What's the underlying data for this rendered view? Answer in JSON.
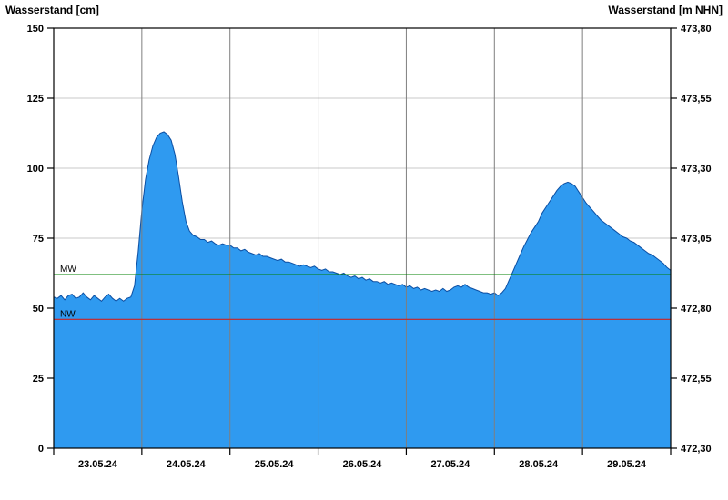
{
  "header": {
    "left_axis_title": "Wasserstand [cm]",
    "right_axis_title": "Wasserstand [m NHN]"
  },
  "chart_data": {
    "type": "area",
    "axis_title_left": "Wasserstand [cm]",
    "axis_title_right": "Wasserstand [m NHN]",
    "x_labels": [
      "23.05.24",
      "24.05.24",
      "25.05.24",
      "26.05.24",
      "27.05.24",
      "28.05.24",
      "29.05.24"
    ],
    "hours_total": 168,
    "days_total": 7,
    "ylim": [
      0,
      150
    ],
    "y_ticks_left": [
      {
        "value": 0,
        "label": "0"
      },
      {
        "value": 25,
        "label": "25"
      },
      {
        "value": 50,
        "label": "50"
      },
      {
        "value": 75,
        "label": "75"
      },
      {
        "value": 100,
        "label": "100"
      },
      {
        "value": 125,
        "label": "125"
      },
      {
        "value": 150,
        "label": "150"
      }
    ],
    "y_ticks_right": [
      {
        "value": 0,
        "label": "472,30"
      },
      {
        "value": 25,
        "label": "472,55"
      },
      {
        "value": 50,
        "label": "472,80"
      },
      {
        "value": 75,
        "label": "473,05"
      },
      {
        "value": 100,
        "label": "473,30"
      },
      {
        "value": 125,
        "label": "473,55"
      },
      {
        "value": 150,
        "label": "473,80"
      }
    ],
    "reference_lines": [
      {
        "name": "MW",
        "value": 62,
        "color": "#008000"
      },
      {
        "name": "NW",
        "value": 46,
        "color": "#cc2222"
      }
    ],
    "colors": {
      "area_fill": "#2f9af0",
      "area_stroke": "#0b4ea2",
      "grid_horizontal": "#c8c8c8",
      "grid_vertical": "#7f7f7f",
      "frame": "#000000"
    },
    "series": [
      {
        "name": "Wasserstand",
        "unit": "cm",
        "start_label": "23.05.24 00:00",
        "step_hours": 1,
        "values": [
          54,
          53.5,
          54.5,
          53,
          54.5,
          55,
          53.5,
          54,
          55.5,
          54,
          53,
          54.5,
          53.5,
          52.5,
          54,
          55,
          53.5,
          52.5,
          53.5,
          52.5,
          53.5,
          54,
          58,
          70,
          85,
          96,
          103,
          108,
          111,
          112.5,
          113,
          112,
          110,
          105,
          97,
          88,
          81,
          77.5,
          76,
          75.5,
          74.5,
          74.5,
          73.5,
          74,
          73,
          72.5,
          73,
          72.5,
          72.5,
          71.5,
          71.5,
          70.5,
          71,
          70,
          69.5,
          69,
          69.5,
          68.5,
          68.5,
          68,
          67.5,
          67,
          67.5,
          66.5,
          66.5,
          66,
          65.5,
          65,
          65.5,
          65,
          64.5,
          65,
          64,
          63.5,
          64,
          63,
          63,
          62.5,
          62,
          62.5,
          61.5,
          61,
          61.5,
          60.5,
          61,
          60,
          60.5,
          59.5,
          59.5,
          59,
          59.5,
          58.5,
          59,
          58.5,
          58,
          58.5,
          57.5,
          58,
          57,
          57.5,
          56.5,
          57,
          56.5,
          56,
          56.5,
          56,
          57,
          56,
          56.5,
          57.5,
          58,
          57.5,
          58.5,
          57.5,
          57,
          56.5,
          56,
          55.5,
          55.5,
          55,
          55.5,
          54.5,
          55.5,
          57,
          60,
          63,
          66,
          69,
          72,
          74.5,
          77,
          79,
          81,
          84,
          86,
          88,
          90,
          92,
          93.5,
          94.5,
          95,
          94.5,
          93.5,
          91.5,
          89.5,
          87.5,
          86,
          84.5,
          83,
          81.5,
          80.5,
          79.5,
          78.5,
          77.5,
          76.5,
          75.5,
          75,
          74,
          73.5,
          72.5,
          71.5,
          70.5,
          69.5,
          69,
          68,
          67,
          66,
          64.5,
          63.5
        ]
      }
    ]
  }
}
